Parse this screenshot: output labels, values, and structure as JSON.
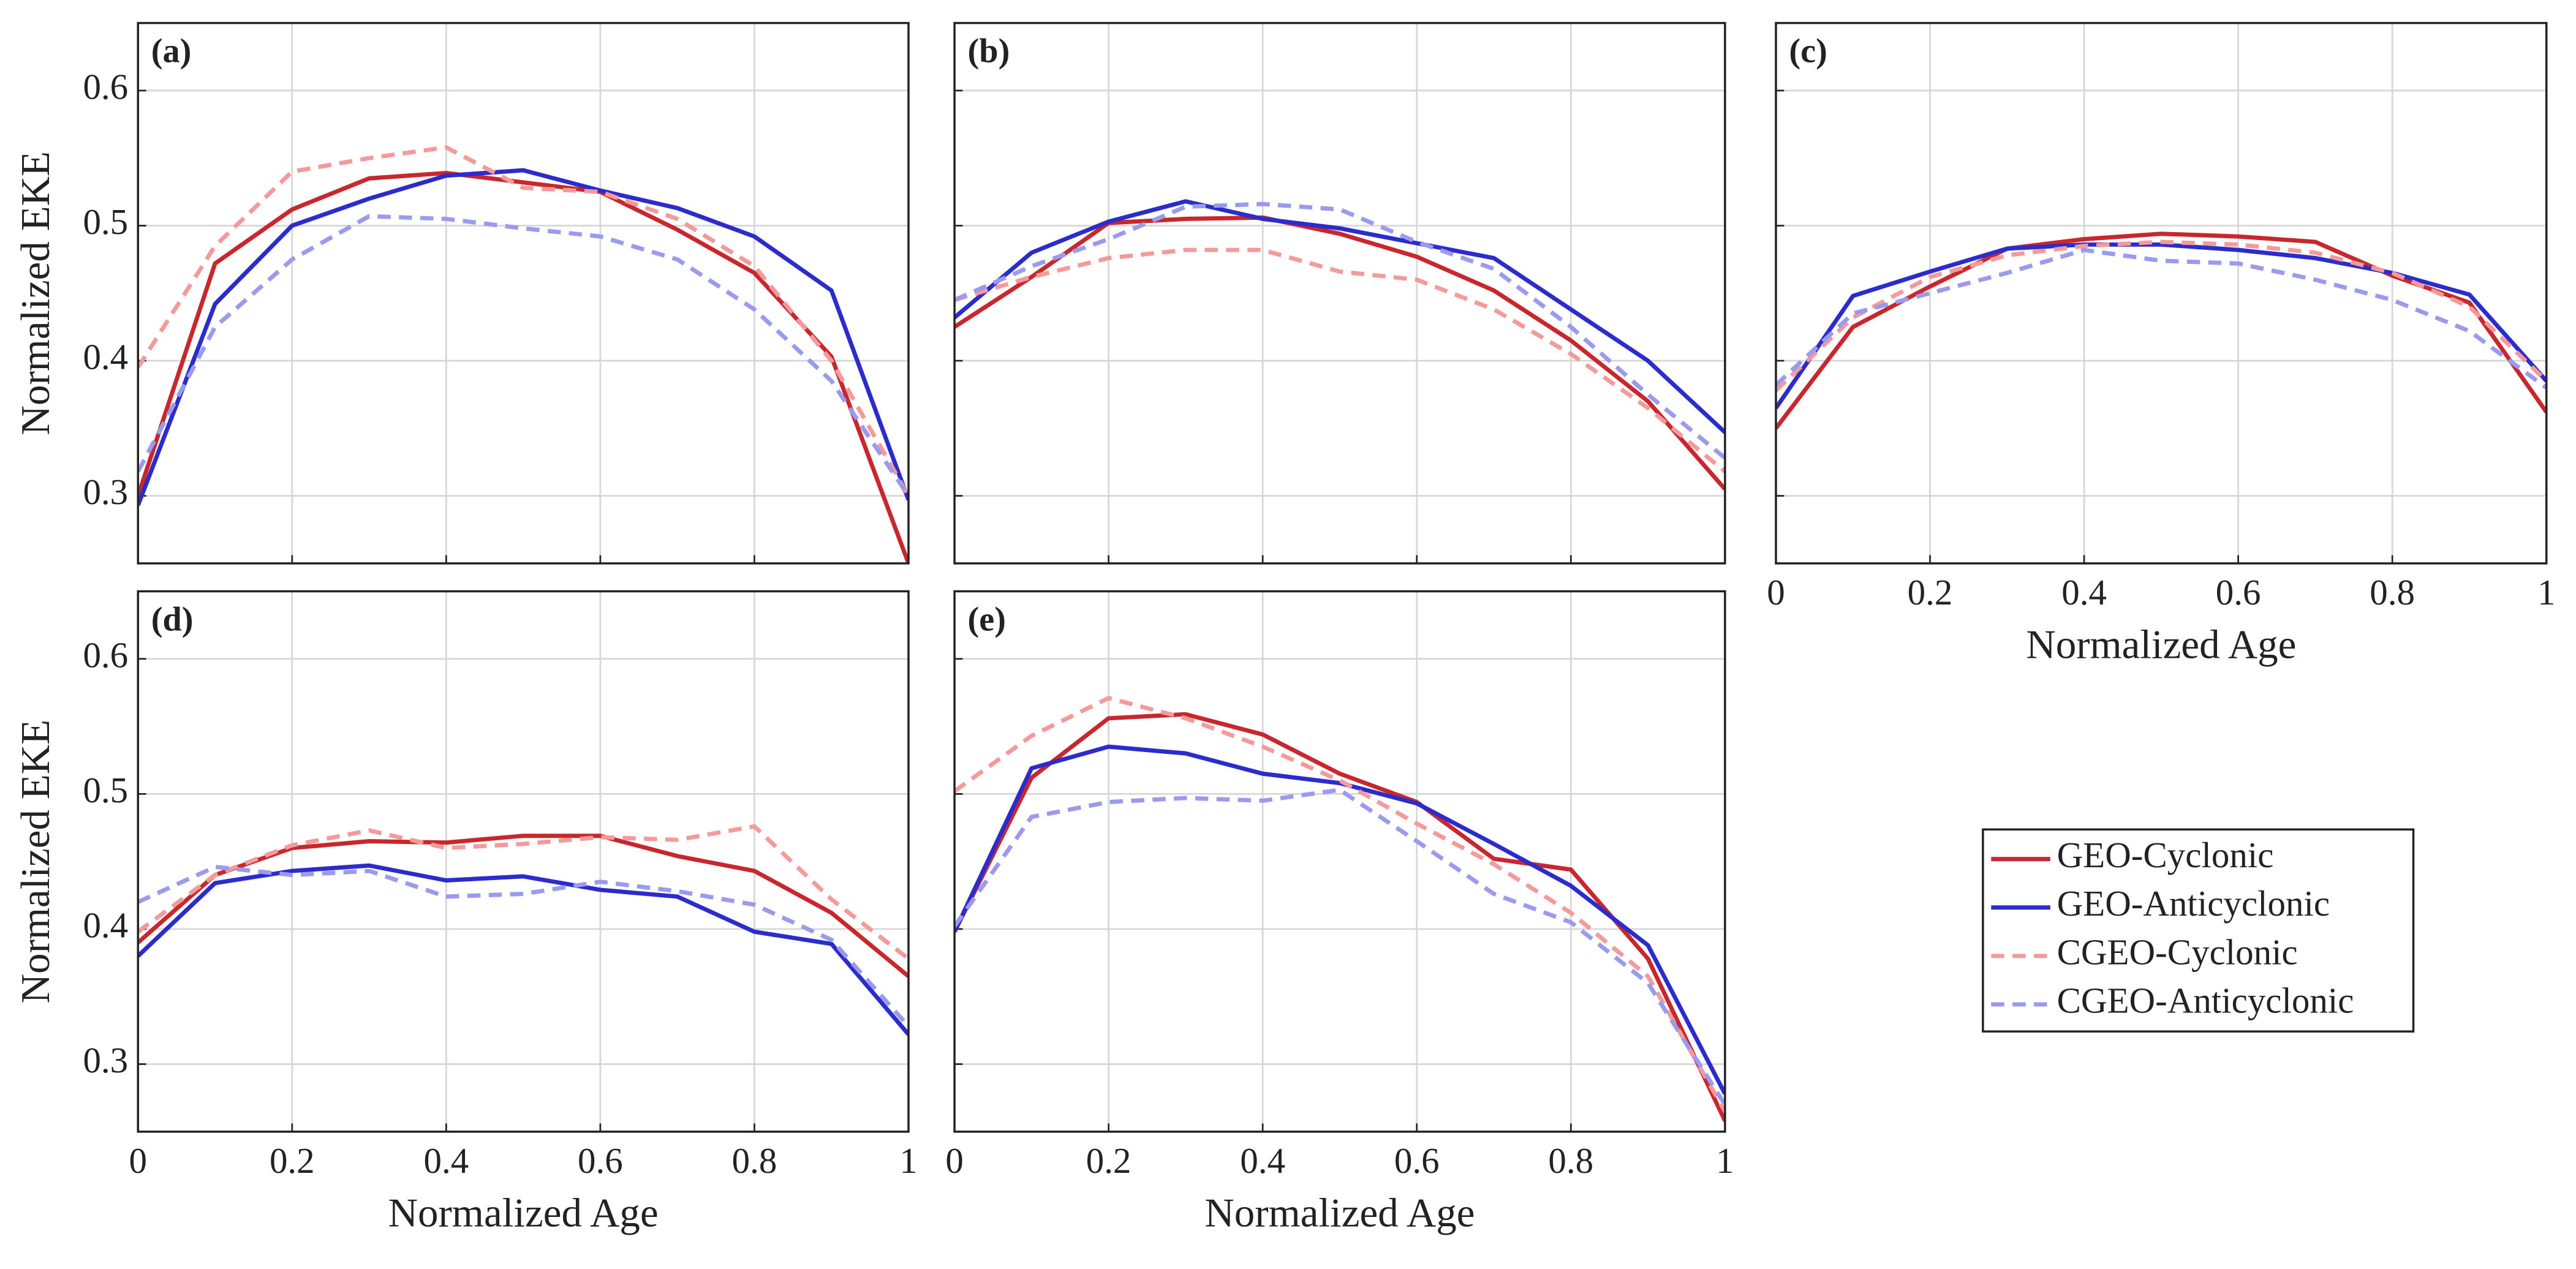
{
  "chart_data": [
    {
      "type": "line",
      "title": "(a)",
      "ylabel": "Normalized EKE",
      "grid": true,
      "x": [
        0,
        0.1,
        0.2,
        0.3,
        0.4,
        0.5,
        0.6,
        0.7,
        0.8,
        0.9,
        1
      ],
      "xlim": [
        0,
        1
      ],
      "xticks": [
        0,
        0.2,
        0.4,
        0.6,
        0.8,
        1
      ],
      "ylim": [
        0.25,
        0.65
      ],
      "yticks": [
        0.3,
        0.4,
        0.5,
        0.6
      ],
      "series": [
        {
          "name": "GEO-Cyclonic",
          "color": "#c8282d",
          "dashed": false,
          "values": [
            0.3,
            0.472,
            0.512,
            0.535,
            0.539,
            0.532,
            0.525,
            0.497,
            0.465,
            0.403,
            0.25
          ]
        },
        {
          "name": "GEO-Anticyclonic",
          "color": "#2c2ccc",
          "dashed": false,
          "values": [
            0.293,
            0.442,
            0.5,
            0.52,
            0.537,
            0.541,
            0.526,
            0.513,
            0.492,
            0.452,
            0.297
          ]
        },
        {
          "name": "CGEO-Cyclonic",
          "color": "#f59a9a",
          "dashed": true,
          "values": [
            0.395,
            0.485,
            0.54,
            0.55,
            0.558,
            0.528,
            0.525,
            0.505,
            0.47,
            0.4,
            0.3
          ]
        },
        {
          "name": "CGEO-Anticyclonic",
          "color": "#9a9aef",
          "dashed": true,
          "values": [
            0.318,
            0.425,
            0.475,
            0.507,
            0.505,
            0.498,
            0.492,
            0.475,
            0.438,
            0.385,
            0.3
          ]
        }
      ]
    },
    {
      "type": "line",
      "title": "(b)",
      "grid": true,
      "x": [
        0,
        0.1,
        0.2,
        0.3,
        0.4,
        0.5,
        0.6,
        0.7,
        0.8,
        0.9,
        1
      ],
      "xlim": [
        0,
        1
      ],
      "xticks": [
        0,
        0.2,
        0.4,
        0.6,
        0.8,
        1
      ],
      "ylim": [
        0.25,
        0.65
      ],
      "yticks": [
        0.3,
        0.4,
        0.5,
        0.6
      ],
      "series": [
        {
          "name": "GEO-Cyclonic",
          "color": "#c8282d",
          "dashed": false,
          "values": [
            0.425,
            0.462,
            0.502,
            0.505,
            0.506,
            0.494,
            0.477,
            0.452,
            0.415,
            0.37,
            0.305
          ]
        },
        {
          "name": "GEO-Anticyclonic",
          "color": "#2c2ccc",
          "dashed": false,
          "values": [
            0.432,
            0.48,
            0.503,
            0.518,
            0.505,
            0.498,
            0.487,
            0.476,
            0.438,
            0.4,
            0.347
          ]
        },
        {
          "name": "CGEO-Cyclonic",
          "color": "#f59a9a",
          "dashed": true,
          "values": [
            0.445,
            0.462,
            0.476,
            0.482,
            0.482,
            0.466,
            0.46,
            0.438,
            0.405,
            0.365,
            0.318
          ]
        },
        {
          "name": "CGEO-Anticyclonic",
          "color": "#9a9aef",
          "dashed": true,
          "values": [
            0.445,
            0.47,
            0.49,
            0.514,
            0.516,
            0.512,
            0.488,
            0.468,
            0.425,
            0.375,
            0.328
          ]
        }
      ]
    },
    {
      "type": "line",
      "title": "(c)",
      "xlabel": "Normalized Age",
      "grid": true,
      "x": [
        0,
        0.1,
        0.2,
        0.3,
        0.4,
        0.5,
        0.6,
        0.7,
        0.8,
        0.9,
        1
      ],
      "xlim": [
        0,
        1
      ],
      "xticks": [
        0,
        0.2,
        0.4,
        0.6,
        0.8,
        1
      ],
      "ylim": [
        0.25,
        0.65
      ],
      "yticks": [
        0.3,
        0.4,
        0.5,
        0.6
      ],
      "series": [
        {
          "name": "GEO-Cyclonic",
          "color": "#c8282d",
          "dashed": false,
          "values": [
            0.35,
            0.425,
            0.455,
            0.483,
            0.49,
            0.494,
            0.492,
            0.488,
            0.463,
            0.443,
            0.362
          ]
        },
        {
          "name": "GEO-Anticyclonic",
          "color": "#2c2ccc",
          "dashed": false,
          "values": [
            0.365,
            0.448,
            0.466,
            0.483,
            0.486,
            0.486,
            0.482,
            0.476,
            0.465,
            0.449,
            0.385
          ]
        },
        {
          "name": "CGEO-Cyclonic",
          "color": "#f59a9a",
          "dashed": true,
          "values": [
            0.378,
            0.432,
            0.462,
            0.478,
            0.485,
            0.488,
            0.486,
            0.48,
            0.465,
            0.44,
            0.385
          ]
        },
        {
          "name": "CGEO-Anticyclonic",
          "color": "#9a9aef",
          "dashed": true,
          "values": [
            0.382,
            0.435,
            0.45,
            0.465,
            0.482,
            0.474,
            0.472,
            0.46,
            0.445,
            0.422,
            0.38
          ]
        }
      ]
    },
    {
      "type": "line",
      "title": "(d)",
      "xlabel": "Normalized Age",
      "ylabel": "Normalized EKE",
      "grid": true,
      "x": [
        0,
        0.1,
        0.2,
        0.3,
        0.4,
        0.5,
        0.6,
        0.7,
        0.8,
        0.9,
        1
      ],
      "xlim": [
        0,
        1
      ],
      "xticks": [
        0,
        0.2,
        0.4,
        0.6,
        0.8,
        1
      ],
      "ylim": [
        0.25,
        0.65
      ],
      "yticks": [
        0.3,
        0.4,
        0.5,
        0.6
      ],
      "series": [
        {
          "name": "GEO-Cyclonic",
          "color": "#c8282d",
          "dashed": false,
          "values": [
            0.39,
            0.44,
            0.46,
            0.465,
            0.464,
            0.469,
            0.469,
            0.454,
            0.443,
            0.412,
            0.365
          ]
        },
        {
          "name": "GEO-Anticyclonic",
          "color": "#2c2ccc",
          "dashed": false,
          "values": [
            0.38,
            0.434,
            0.443,
            0.447,
            0.436,
            0.439,
            0.429,
            0.424,
            0.398,
            0.389,
            0.322
          ]
        },
        {
          "name": "CGEO-Cyclonic",
          "color": "#f59a9a",
          "dashed": true,
          "values": [
            0.398,
            0.44,
            0.462,
            0.473,
            0.46,
            0.463,
            0.468,
            0.466,
            0.476,
            0.422,
            0.378
          ]
        },
        {
          "name": "CGEO-Anticyclonic",
          "color": "#9a9aef",
          "dashed": true,
          "values": [
            0.42,
            0.446,
            0.44,
            0.443,
            0.424,
            0.426,
            0.435,
            0.428,
            0.418,
            0.392,
            0.328
          ]
        }
      ]
    },
    {
      "type": "line",
      "title": "(e)",
      "xlabel": "Normalized Age",
      "grid": true,
      "x": [
        0,
        0.1,
        0.2,
        0.3,
        0.4,
        0.5,
        0.6,
        0.7,
        0.8,
        0.9,
        1
      ],
      "xlim": [
        0,
        1
      ],
      "xticks": [
        0,
        0.2,
        0.4,
        0.6,
        0.8,
        1
      ],
      "ylim": [
        0.25,
        0.65
      ],
      "yticks": [
        0.3,
        0.4,
        0.5,
        0.6
      ],
      "series": [
        {
          "name": "GEO-Cyclonic",
          "color": "#c8282d",
          "dashed": false,
          "values": [
            0.398,
            0.512,
            0.556,
            0.559,
            0.544,
            0.515,
            0.494,
            0.452,
            0.444,
            0.378,
            0.258
          ]
        },
        {
          "name": "GEO-Anticyclonic",
          "color": "#2c2ccc",
          "dashed": false,
          "values": [
            0.398,
            0.519,
            0.535,
            0.53,
            0.515,
            0.508,
            0.493,
            0.463,
            0.432,
            0.388,
            0.278
          ]
        },
        {
          "name": "CGEO-Cyclonic",
          "color": "#f59a9a",
          "dashed": true,
          "values": [
            0.502,
            0.543,
            0.571,
            0.556,
            0.535,
            0.51,
            0.478,
            0.448,
            0.412,
            0.365,
            0.265
          ]
        },
        {
          "name": "CGEO-Anticyclonic",
          "color": "#9a9aef",
          "dashed": true,
          "values": [
            0.402,
            0.483,
            0.494,
            0.497,
            0.495,
            0.503,
            0.465,
            0.426,
            0.405,
            0.36,
            0.27
          ]
        }
      ]
    }
  ]
}
